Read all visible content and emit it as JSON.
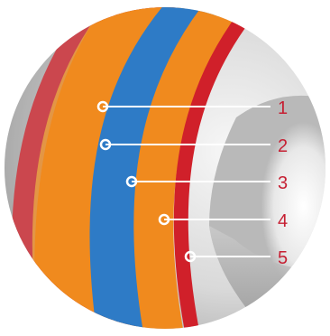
{
  "diagram": {
    "colors": {
      "outer_red": "#d0202a",
      "orange": "#f08a1e",
      "blue": "#2e7bc6",
      "label": "#c62033",
      "leader": "#ffffff",
      "background_light": "#e9e9e9",
      "background_dark": "#a7a7a7"
    },
    "layers": [
      {
        "label": "1"
      },
      {
        "label": "2"
      },
      {
        "label": "3"
      },
      {
        "label": "4"
      },
      {
        "label": "5"
      }
    ]
  }
}
